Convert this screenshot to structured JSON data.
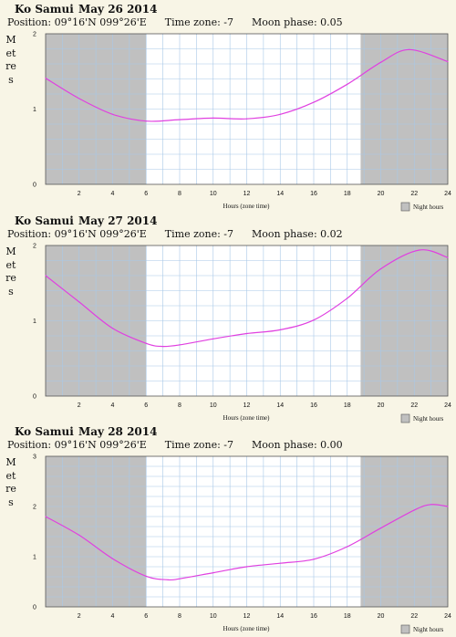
{
  "panels": [
    {
      "location": "Ko Samui",
      "date": "May 26 2014",
      "position": "Position: 09°16'N 099°26'E",
      "timezone": "Time zone: -7",
      "moon": "Moon phase: 0.05"
    },
    {
      "location": "Ko Samui",
      "date": "May 27 2014",
      "position": "Position: 09°16'N 099°26'E",
      "timezone": "Time zone: -7",
      "moon": "Moon phase: 0.02"
    },
    {
      "location": "Ko Samui",
      "date": "May 28 2014",
      "position": "Position: 09°16'N 099°26'E",
      "timezone": "Time zone: -7",
      "moon": "Moon phase: 0.00"
    }
  ],
  "chart_data": [
    {
      "type": "line",
      "title": "Ko Samui May 26 2014",
      "xlabel": "Hours (zone time)",
      "ylabel": "Metres",
      "xlim": [
        0,
        24
      ],
      "ylim": [
        0,
        2
      ],
      "xticks": [
        2,
        4,
        6,
        8,
        10,
        12,
        14,
        16,
        18,
        20,
        22,
        24
      ],
      "yticks": [
        0,
        1,
        2
      ],
      "grid": true,
      "legend": "Night hours",
      "night_hours": [
        [
          0,
          6.0
        ],
        [
          18.8,
          24
        ]
      ],
      "colors": {
        "line": "#e040e0",
        "night": "#c0c0c0",
        "grid": "#a8c8e8"
      },
      "x": [
        0,
        2,
        4,
        6,
        8,
        10,
        12,
        14,
        16,
        18,
        20,
        21.7,
        24
      ],
      "y": [
        1.41,
        1.14,
        0.93,
        0.84,
        0.86,
        0.88,
        0.87,
        0.93,
        1.09,
        1.33,
        1.62,
        1.79,
        1.63
      ]
    },
    {
      "type": "line",
      "title": "Ko Samui May 27 2014",
      "xlabel": "Hours (zone time)",
      "ylabel": "Metres",
      "xlim": [
        0,
        24
      ],
      "ylim": [
        0,
        2
      ],
      "xticks": [
        2,
        4,
        6,
        8,
        10,
        12,
        14,
        16,
        18,
        20,
        22,
        24
      ],
      "yticks": [
        0,
        1,
        2
      ],
      "grid": true,
      "legend": "Night hours",
      "night_hours": [
        [
          0,
          6.0
        ],
        [
          18.8,
          24
        ]
      ],
      "colors": {
        "line": "#e040e0",
        "night": "#c0c0c0",
        "grid": "#a8c8e8"
      },
      "x": [
        0,
        2,
        4,
        6,
        7,
        8,
        10,
        12,
        14,
        16,
        18,
        20,
        22.3,
        24
      ],
      "y": [
        1.6,
        1.25,
        0.9,
        0.7,
        0.66,
        0.68,
        0.76,
        0.83,
        0.88,
        1.01,
        1.3,
        1.69,
        1.94,
        1.84
      ]
    },
    {
      "type": "line",
      "title": "Ko Samui May 28 2014",
      "xlabel": "Hours (zone time)",
      "ylabel": "Metres",
      "xlim": [
        0,
        24
      ],
      "ylim": [
        0,
        3
      ],
      "xticks": [
        2,
        4,
        6,
        8,
        10,
        12,
        14,
        16,
        18,
        20,
        22,
        24
      ],
      "yticks": [
        0,
        1,
        2,
        3
      ],
      "grid": true,
      "legend": "Night hours",
      "night_hours": [
        [
          0,
          6.0
        ],
        [
          18.8,
          24
        ]
      ],
      "colors": {
        "line": "#e040e0",
        "night": "#c0c0c0",
        "grid": "#a8c8e8"
      },
      "x": [
        0,
        2,
        4,
        6,
        7.3,
        8,
        10,
        12,
        14,
        16,
        18,
        20,
        22,
        23,
        24
      ],
      "y": [
        1.8,
        1.43,
        0.96,
        0.61,
        0.54,
        0.56,
        0.68,
        0.8,
        0.87,
        0.95,
        1.2,
        1.57,
        1.93,
        2.04,
        2.0
      ]
    }
  ]
}
